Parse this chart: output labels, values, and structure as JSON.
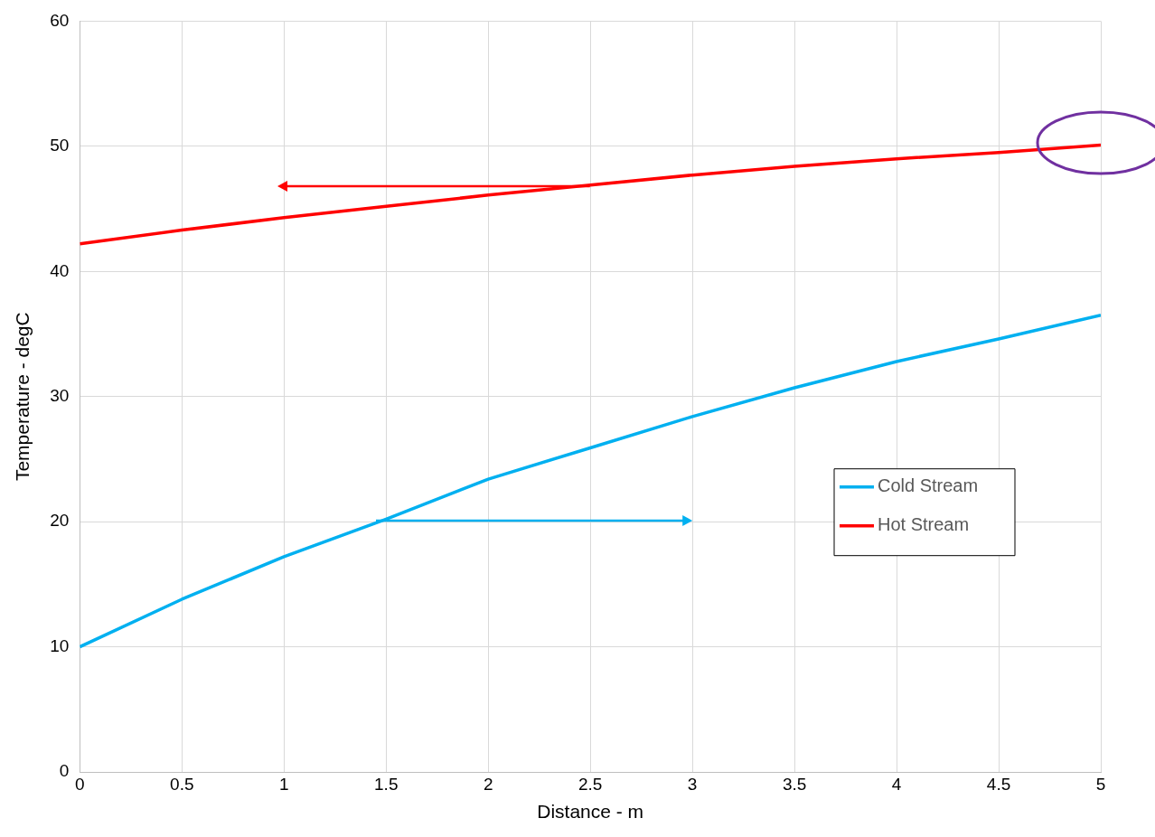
{
  "chart_data": {
    "type": "line",
    "xlabel": "Distance - m",
    "ylabel": "Temperature - degC",
    "x": [
      0,
      0.5,
      1,
      1.5,
      2,
      2.5,
      3,
      3.5,
      4,
      4.5,
      5
    ],
    "series": [
      {
        "name": "Cold Stream",
        "color": "#00b0f0",
        "values": [
          10,
          13.8,
          17.2,
          20.2,
          23.4,
          25.9,
          28.4,
          30.7,
          32.8,
          34.6,
          36.5
        ]
      },
      {
        "name": "Hot Stream",
        "color": "#ff0000",
        "values": [
          42.2,
          43.3,
          44.3,
          45.2,
          46.1,
          46.9,
          47.7,
          48.4,
          49.0,
          49.5,
          50.1
        ]
      }
    ],
    "xlim": [
      0,
      5
    ],
    "xticks": [
      0,
      0.5,
      1,
      1.5,
      2,
      2.5,
      3,
      3.5,
      4,
      4.5,
      5
    ],
    "ylim": [
      0,
      60
    ],
    "yticks": [
      0,
      10,
      20,
      30,
      40,
      50,
      60
    ],
    "grid": true,
    "legend": "right",
    "marker": "none",
    "line_style": "solid"
  }
}
